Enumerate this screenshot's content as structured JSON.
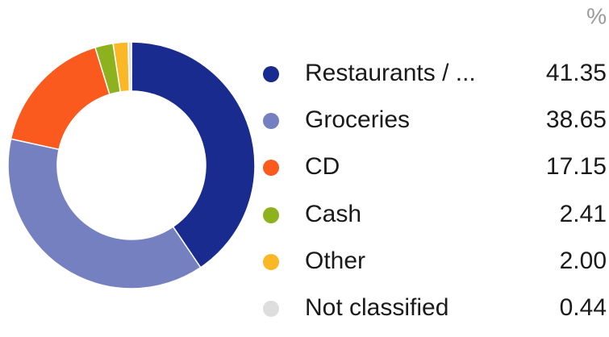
{
  "chart_data": {
    "type": "donut",
    "unit_label": "%",
    "categories": [
      "Restaurants / ...",
      "Groceries",
      "CD",
      "Cash",
      "Other",
      "Not classified"
    ],
    "values": [
      41.35,
      38.65,
      17.15,
      2.41,
      2,
      0.44
    ],
    "value_labels": [
      "41.35",
      "38.65",
      "17.15",
      "2.41",
      "2.00",
      "0.44"
    ],
    "colors": [
      "#1a2b8f",
      "#7580c0",
      "#fa5a1e",
      "#8db21e",
      "#fbb826",
      "#dedede"
    ],
    "legend": "right"
  }
}
